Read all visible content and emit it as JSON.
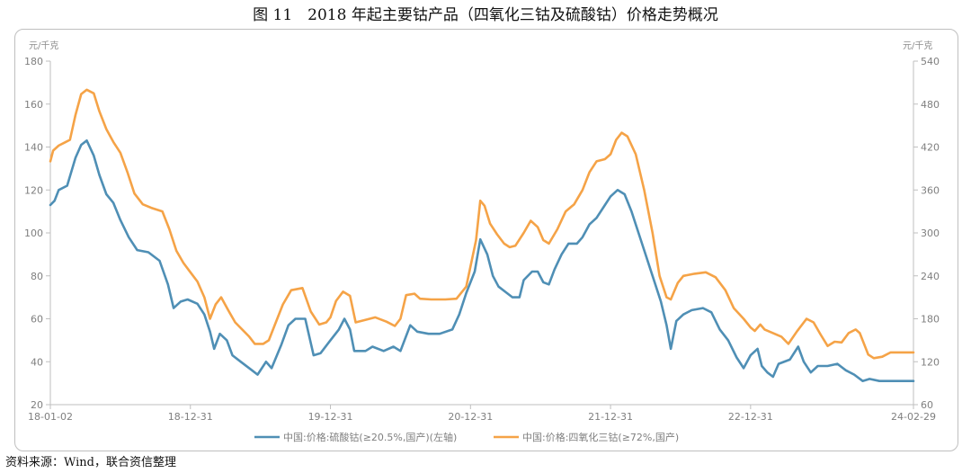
{
  "figure": {
    "title": "图 11　2018 年起主要钴产品（四氧化三钴及硫酸钴）价格走势概况",
    "source": "资料来源：Wind，联合资信整理"
  },
  "colors": {
    "left_series": "#4f8fb5",
    "right_series": "#f5a347",
    "axis": "#bfbfbf",
    "text": "#7f7f7f"
  },
  "chart_data": {
    "type": "line",
    "left_axis": {
      "unit": "元/千克",
      "ylim": [
        20,
        180
      ],
      "ticks": [
        20,
        40,
        60,
        80,
        100,
        120,
        140,
        160,
        180
      ]
    },
    "right_axis": {
      "unit": "元/千克",
      "ylim": [
        60,
        540
      ],
      "ticks": [
        60,
        120,
        180,
        240,
        300,
        360,
        420,
        480,
        540
      ]
    },
    "x_ticks": [
      "18-01-02",
      "18-12-31",
      "19-12-31",
      "20-12-31",
      "21-12-31",
      "22-12-31",
      "24-02-29"
    ],
    "x_tick_years": [
      2018.0,
      2019.0,
      2020.0,
      2021.0,
      2022.0,
      2023.0,
      2024.163
    ],
    "xlim": [
      2018.0,
      2024.163
    ],
    "grid": false,
    "legend_position": "bottom",
    "series": [
      {
        "name": "中国:价格:硫酸钴(≥20.5%,国产)(左轴)",
        "axis": "left",
        "points": [
          [
            2018.0,
            113
          ],
          [
            2018.03,
            115
          ],
          [
            2018.06,
            120
          ],
          [
            2018.12,
            122
          ],
          [
            2018.18,
            135
          ],
          [
            2018.22,
            141
          ],
          [
            2018.26,
            143
          ],
          [
            2018.31,
            136
          ],
          [
            2018.35,
            127
          ],
          [
            2018.4,
            118
          ],
          [
            2018.45,
            114
          ],
          [
            2018.5,
            106
          ],
          [
            2018.56,
            98
          ],
          [
            2018.62,
            92
          ],
          [
            2018.7,
            91
          ],
          [
            2018.78,
            87
          ],
          [
            2018.84,
            76
          ],
          [
            2018.88,
            65
          ],
          [
            2018.93,
            68
          ],
          [
            2018.98,
            69
          ],
          [
            2019.05,
            67
          ],
          [
            2019.1,
            62
          ],
          [
            2019.14,
            54
          ],
          [
            2019.17,
            46
          ],
          [
            2019.21,
            53
          ],
          [
            2019.26,
            50
          ],
          [
            2019.3,
            43
          ],
          [
            2019.36,
            40
          ],
          [
            2019.44,
            36
          ],
          [
            2019.48,
            34
          ],
          [
            2019.54,
            40
          ],
          [
            2019.58,
            37
          ],
          [
            2019.65,
            48
          ],
          [
            2019.7,
            57
          ],
          [
            2019.75,
            60
          ],
          [
            2019.82,
            60
          ],
          [
            2019.88,
            43
          ],
          [
            2019.93,
            44
          ],
          [
            2020.0,
            50
          ],
          [
            2020.06,
            55
          ],
          [
            2020.1,
            60
          ],
          [
            2020.14,
            55
          ],
          [
            2020.17,
            45
          ],
          [
            2020.25,
            45
          ],
          [
            2020.3,
            47
          ],
          [
            2020.38,
            45
          ],
          [
            2020.45,
            47
          ],
          [
            2020.5,
            45
          ],
          [
            2020.57,
            57
          ],
          [
            2020.62,
            54
          ],
          [
            2020.7,
            53
          ],
          [
            2020.78,
            53
          ],
          [
            2020.87,
            55
          ],
          [
            2020.92,
            62
          ],
          [
            2020.97,
            72
          ],
          [
            2021.03,
            82
          ],
          [
            2021.07,
            97
          ],
          [
            2021.12,
            90
          ],
          [
            2021.16,
            80
          ],
          [
            2021.2,
            75
          ],
          [
            2021.26,
            72
          ],
          [
            2021.3,
            70
          ],
          [
            2021.35,
            70
          ],
          [
            2021.38,
            78
          ],
          [
            2021.44,
            82
          ],
          [
            2021.48,
            82
          ],
          [
            2021.52,
            77
          ],
          [
            2021.56,
            76
          ],
          [
            2021.6,
            83
          ],
          [
            2021.65,
            90
          ],
          [
            2021.7,
            95
          ],
          [
            2021.76,
            95
          ],
          [
            2021.8,
            98
          ],
          [
            2021.85,
            104
          ],
          [
            2021.9,
            107
          ],
          [
            2021.95,
            112
          ],
          [
            2022.0,
            117
          ],
          [
            2022.05,
            120
          ],
          [
            2022.1,
            118
          ],
          [
            2022.15,
            110
          ],
          [
            2022.2,
            100
          ],
          [
            2022.25,
            90
          ],
          [
            2022.3,
            80
          ],
          [
            2022.36,
            68
          ],
          [
            2022.4,
            57
          ],
          [
            2022.43,
            46
          ],
          [
            2022.47,
            59
          ],
          [
            2022.52,
            62
          ],
          [
            2022.58,
            64
          ],
          [
            2022.66,
            65
          ],
          [
            2022.72,
            63
          ],
          [
            2022.78,
            55
          ],
          [
            2022.84,
            50
          ],
          [
            2022.9,
            42
          ],
          [
            2022.95,
            37
          ],
          [
            2023.0,
            43
          ],
          [
            2023.05,
            46
          ],
          [
            2023.08,
            38
          ],
          [
            2023.12,
            35
          ],
          [
            2023.16,
            33
          ],
          [
            2023.2,
            39
          ],
          [
            2023.28,
            41
          ],
          [
            2023.34,
            47
          ],
          [
            2023.38,
            40
          ],
          [
            2023.43,
            35
          ],
          [
            2023.48,
            38
          ],
          [
            2023.55,
            38
          ],
          [
            2023.62,
            39
          ],
          [
            2023.68,
            36
          ],
          [
            2023.74,
            34
          ],
          [
            2023.8,
            31
          ],
          [
            2023.85,
            32
          ],
          [
            2023.92,
            31
          ],
          [
            2024.0,
            31
          ],
          [
            2024.163,
            31
          ]
        ]
      },
      {
        "name": "中国:价格:四氧化三钴(≥72%,国产)",
        "axis": "right",
        "points": [
          [
            2018.0,
            400
          ],
          [
            2018.02,
            415
          ],
          [
            2018.06,
            422
          ],
          [
            2018.1,
            426
          ],
          [
            2018.14,
            430
          ],
          [
            2018.18,
            465
          ],
          [
            2018.22,
            494
          ],
          [
            2018.26,
            500
          ],
          [
            2018.31,
            495
          ],
          [
            2018.35,
            470
          ],
          [
            2018.4,
            445
          ],
          [
            2018.45,
            427
          ],
          [
            2018.5,
            412
          ],
          [
            2018.55,
            385
          ],
          [
            2018.6,
            355
          ],
          [
            2018.66,
            340
          ],
          [
            2018.72,
            335
          ],
          [
            2018.8,
            330
          ],
          [
            2018.85,
            305
          ],
          [
            2018.9,
            275
          ],
          [
            2018.95,
            258
          ],
          [
            2019.0,
            245
          ],
          [
            2019.05,
            232
          ],
          [
            2019.1,
            210
          ],
          [
            2019.14,
            180
          ],
          [
            2019.18,
            200
          ],
          [
            2019.22,
            210
          ],
          [
            2019.27,
            192
          ],
          [
            2019.32,
            175
          ],
          [
            2019.37,
            165
          ],
          [
            2019.42,
            155
          ],
          [
            2019.46,
            145
          ],
          [
            2019.52,
            145
          ],
          [
            2019.56,
            150
          ],
          [
            2019.6,
            170
          ],
          [
            2019.66,
            200
          ],
          [
            2019.72,
            220
          ],
          [
            2019.8,
            223
          ],
          [
            2019.86,
            190
          ],
          [
            2019.92,
            172
          ],
          [
            2019.97,
            175
          ],
          [
            2020.0,
            182
          ],
          [
            2020.04,
            205
          ],
          [
            2020.09,
            218
          ],
          [
            2020.14,
            212
          ],
          [
            2020.18,
            175
          ],
          [
            2020.24,
            178
          ],
          [
            2020.32,
            182
          ],
          [
            2020.4,
            176
          ],
          [
            2020.46,
            170
          ],
          [
            2020.5,
            180
          ],
          [
            2020.54,
            213
          ],
          [
            2020.6,
            215
          ],
          [
            2020.64,
            208
          ],
          [
            2020.72,
            207
          ],
          [
            2020.82,
            207
          ],
          [
            2020.9,
            208
          ],
          [
            2020.97,
            225
          ],
          [
            2021.04,
            290
          ],
          [
            2021.07,
            345
          ],
          [
            2021.1,
            338
          ],
          [
            2021.14,
            313
          ],
          [
            2021.19,
            298
          ],
          [
            2021.24,
            285
          ],
          [
            2021.28,
            280
          ],
          [
            2021.32,
            282
          ],
          [
            2021.38,
            300
          ],
          [
            2021.43,
            317
          ],
          [
            2021.48,
            308
          ],
          [
            2021.52,
            290
          ],
          [
            2021.56,
            285
          ],
          [
            2021.62,
            305
          ],
          [
            2021.68,
            330
          ],
          [
            2021.74,
            340
          ],
          [
            2021.8,
            360
          ],
          [
            2021.85,
            385
          ],
          [
            2021.9,
            400
          ],
          [
            2021.96,
            403
          ],
          [
            2022.0,
            410
          ],
          [
            2022.04,
            430
          ],
          [
            2022.08,
            440
          ],
          [
            2022.12,
            435
          ],
          [
            2022.18,
            410
          ],
          [
            2022.24,
            360
          ],
          [
            2022.3,
            300
          ],
          [
            2022.35,
            240
          ],
          [
            2022.4,
            210
          ],
          [
            2022.43,
            207
          ],
          [
            2022.48,
            230
          ],
          [
            2022.52,
            240
          ],
          [
            2022.6,
            243
          ],
          [
            2022.68,
            245
          ],
          [
            2022.75,
            238
          ],
          [
            2022.82,
            220
          ],
          [
            2022.88,
            195
          ],
          [
            2022.95,
            180
          ],
          [
            2023.0,
            168
          ],
          [
            2023.03,
            163
          ],
          [
            2023.07,
            172
          ],
          [
            2023.1,
            165
          ],
          [
            2023.16,
            160
          ],
          [
            2023.22,
            155
          ],
          [
            2023.27,
            145
          ],
          [
            2023.33,
            162
          ],
          [
            2023.4,
            180
          ],
          [
            2023.45,
            175
          ],
          [
            2023.5,
            158
          ],
          [
            2023.55,
            142
          ],
          [
            2023.6,
            148
          ],
          [
            2023.65,
            147
          ],
          [
            2023.7,
            160
          ],
          [
            2023.75,
            165
          ],
          [
            2023.78,
            160
          ],
          [
            2023.84,
            130
          ],
          [
            2023.88,
            125
          ],
          [
            2023.94,
            127
          ],
          [
            2024.0,
            133
          ],
          [
            2024.163,
            133
          ]
        ]
      }
    ]
  }
}
